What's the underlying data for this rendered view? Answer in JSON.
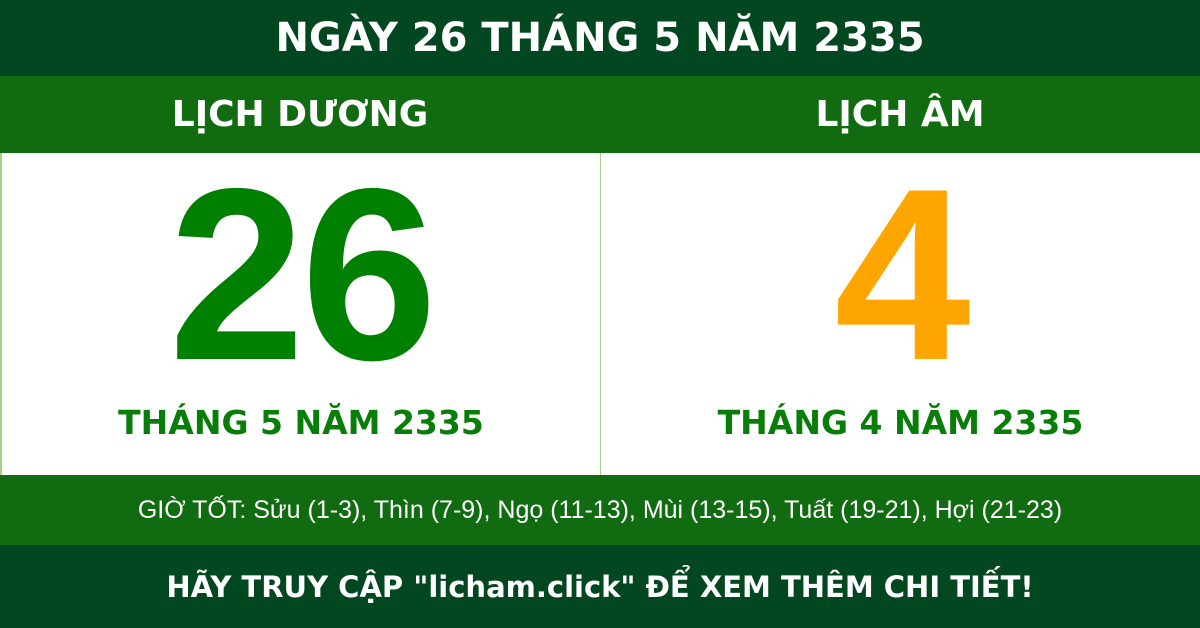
{
  "header": {
    "title": "NGÀY 26 THÁNG 5 NĂM 2335"
  },
  "solar": {
    "label": "LỊCH DƯƠNG",
    "day": "26",
    "month_year": "THÁNG 5 NĂM 2335"
  },
  "lunar": {
    "label": "LỊCH ÂM",
    "day": "4",
    "month_year": "THÁNG 4 NĂM 2335"
  },
  "good_hours": "GIỜ TỐT: Sửu (1-3), Thìn (7-9), Ngọ (11-13), Mùi (13-15), Tuất (19-21), Hợi (21-23)",
  "footer": {
    "cta": "HÃY TRUY CẬP \"licham.click\" ĐỂ XEM THÊM CHI TIẾT!"
  },
  "colors": {
    "dark_green": "#034721",
    "green": "#116b10",
    "solar_day": "#008000",
    "lunar_day": "#ffa500"
  }
}
